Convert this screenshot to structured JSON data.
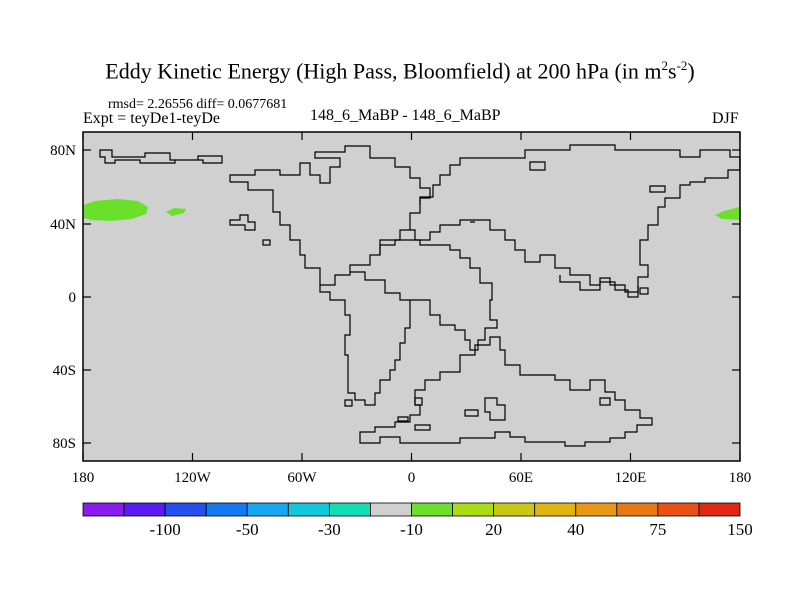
{
  "header": {
    "title_main": "Eddy Kinetic Energy (High Pass, Bloomfield) at 200 hPa (in m",
    "title_sup1": "2",
    "title_mid": "s",
    "title_sup2": "-2",
    "title_end": ")",
    "rmsd_line": "rmsd= 2.26556 diff= 0.0677681",
    "expt_line": "Expt = teyDe1-teyDe",
    "center_line": "148_6_MaBP - 148_6_MaBP",
    "season": "DJF"
  },
  "map": {
    "background_color": "#d0d0d0",
    "positive_color": "#6be02a",
    "lat_labels": [
      "80N",
      "40N",
      "0",
      "40S",
      "80S"
    ],
    "lon_labels": [
      "180",
      "120W",
      "60W",
      "0",
      "60E",
      "120E",
      "180"
    ]
  },
  "colorbar": {
    "colors": [
      "#8a1cf0",
      "#5a1cf0",
      "#2450f0",
      "#1478f0",
      "#14a8f0",
      "#14c8dc",
      "#14dcb4",
      "#d0d0d0",
      "#6be02a",
      "#a8dc14",
      "#c8c814",
      "#e0b414",
      "#e89814",
      "#e87814",
      "#e85014",
      "#e02814"
    ],
    "labels": [
      "-100",
      "-50",
      "-30",
      "-10",
      "20",
      "40",
      "75",
      "150"
    ]
  }
}
